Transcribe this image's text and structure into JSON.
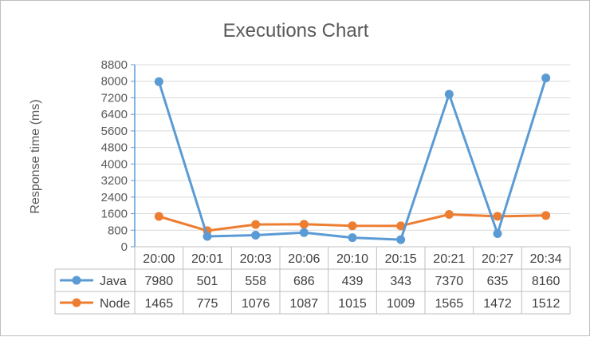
{
  "chart_data": {
    "type": "line",
    "title": "Executions Chart",
    "ylabel": "Response time (ms)",
    "xlabel": "",
    "ylim": [
      0,
      8800
    ],
    "ytick_step": 800,
    "grid": true,
    "legend": "data-table",
    "categories": [
      "20:00",
      "20:01",
      "20:03",
      "20:06",
      "20:10",
      "20:15",
      "20:21",
      "20:27",
      "20:34"
    ],
    "series": [
      {
        "name": "Java",
        "color": "#5b9bd5",
        "values": [
          7980,
          501,
          558,
          686,
          439,
          343,
          7370,
          635,
          8160
        ]
      },
      {
        "name": "Node",
        "color": "#ed7d31",
        "values": [
          1465,
          775,
          1076,
          1087,
          1015,
          1009,
          1565,
          1472,
          1512
        ]
      }
    ]
  }
}
